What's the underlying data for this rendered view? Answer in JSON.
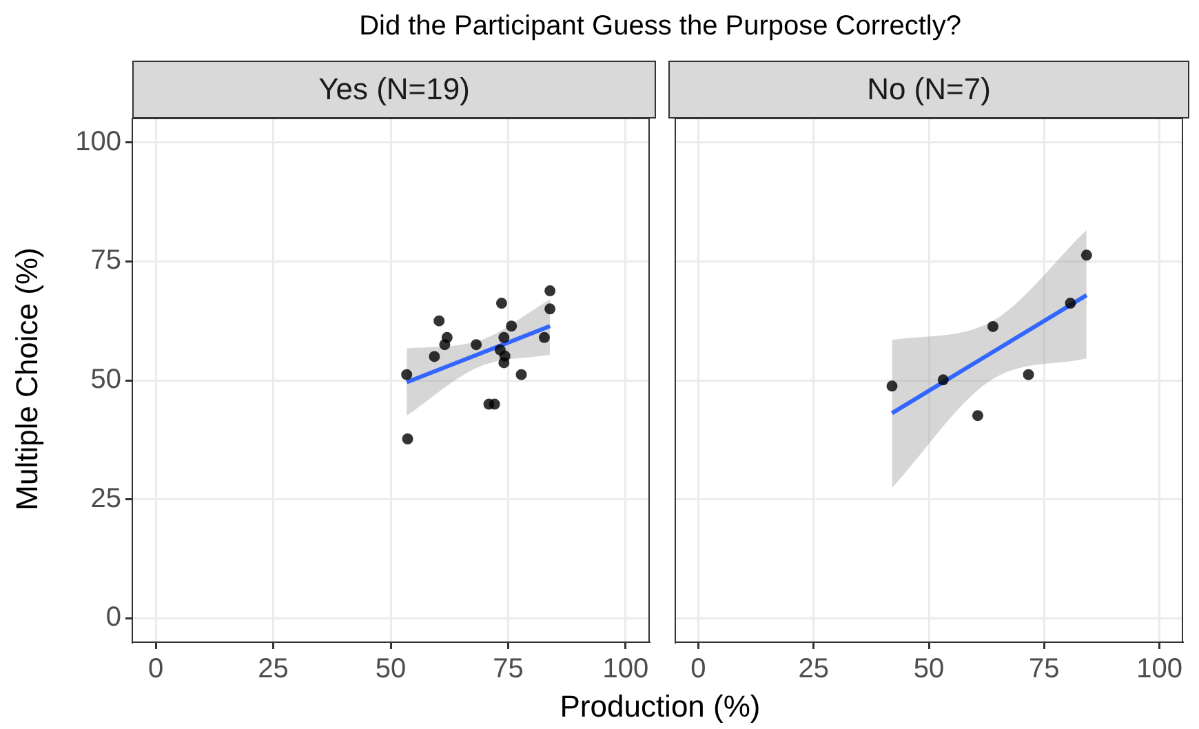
{
  "chart_data": [
    {
      "type": "scatter",
      "title": "Did the Participant Guess the Purpose Correctly?",
      "subtitle": "Yes (N=19)",
      "xlabel": "Production (%)",
      "ylabel": "Multiple Choice (%)",
      "xlim": [
        -5,
        105
      ],
      "ylim": [
        -5,
        105
      ],
      "xticks": [
        0,
        25,
        50,
        75,
        100
      ],
      "yticks": [
        0,
        25,
        50,
        75,
        100
      ],
      "grid": true,
      "series": [
        {
          "type": "scatter",
          "marker": "circle",
          "color": "#000000",
          "x": [
            53.4,
            53.6,
            59.3,
            60.3,
            61.5,
            62.0,
            68.2,
            70.9,
            72.1,
            73.6,
            74.1,
            75.7,
            73.3,
            74.3,
            74.1,
            77.8,
            82.7,
            83.9,
            83.9
          ],
          "values": [
            51.2,
            37.7,
            55.0,
            62.5,
            57.5,
            59.0,
            57.5,
            45.0,
            45.0,
            66.2,
            59.0,
            61.4,
            56.4,
            55.1,
            53.7,
            51.2,
            59.0,
            68.8,
            65.0
          ]
        },
        {
          "type": "line",
          "marker": "none",
          "color": "#3366ff",
          "x": [
            53.4,
            68.7,
            83.9
          ],
          "values": [
            49.6,
            55.5,
            61.4
          ],
          "lower": [
            42.6,
            52.8,
            55.4
          ],
          "upper": [
            56.7,
            58.3,
            67.0
          ]
        }
      ]
    },
    {
      "type": "scatter",
      "subtitle": "No (N=7)",
      "xlim": [
        -5,
        105
      ],
      "ylim": [
        -5,
        105
      ],
      "xticks": [
        0,
        25,
        50,
        75,
        100
      ],
      "yticks": [
        0,
        25,
        50,
        75,
        100
      ],
      "grid": true,
      "tick_labels": "x",
      "series": [
        {
          "type": "scatter",
          "marker": "circle",
          "color": "#000000",
          "x": [
            42.0,
            53.1,
            60.6,
            63.9,
            71.6,
            80.7,
            84.2
          ],
          "values": [
            48.8,
            50.1,
            42.6,
            61.3,
            51.2,
            66.2,
            76.3
          ]
        },
        {
          "type": "line",
          "marker": "none",
          "color": "#3366ff",
          "x": [
            42.0,
            63.1,
            84.2
          ],
          "values": [
            43.1,
            55.5,
            67.9
          ],
          "lower": [
            27.4,
            49.8,
            54.6
          ],
          "upper": [
            58.5,
            62.1,
            81.6
          ]
        }
      ]
    }
  ]
}
